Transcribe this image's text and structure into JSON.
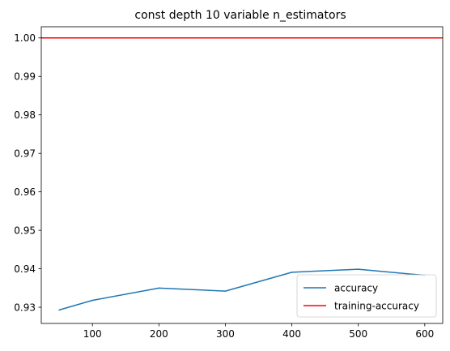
{
  "chart_data": {
    "type": "line",
    "title": "const depth 10  variable n_estimators",
    "xlabel": "",
    "ylabel": "",
    "xlim": [
      23,
      627
    ],
    "ylim": [
      0.9258,
      1.0029
    ],
    "xticks": [
      100,
      200,
      300,
      400,
      500,
      600
    ],
    "yticks": [
      0.93,
      0.94,
      0.95,
      0.96,
      0.97,
      0.98,
      0.99,
      1.0
    ],
    "xtick_labels": [
      "100",
      "200",
      "300",
      "400",
      "500",
      "600"
    ],
    "ytick_labels": [
      "0.93",
      "0.94",
      "0.95",
      "0.96",
      "0.97",
      "0.98",
      "0.99",
      "1.00"
    ],
    "grid": false,
    "legend_position": "lower-right",
    "series": [
      {
        "name": "accuracy",
        "color": "#1f77b4",
        "x": [
          50,
          100,
          200,
          300,
          400,
          500,
          600
        ],
        "y": [
          0.9293,
          0.9318,
          0.935,
          0.9342,
          0.9391,
          0.9399,
          0.9383
        ]
      },
      {
        "name": "training-accuracy",
        "color": "#ff0000",
        "kind": "hline",
        "y": 1.0
      }
    ]
  }
}
